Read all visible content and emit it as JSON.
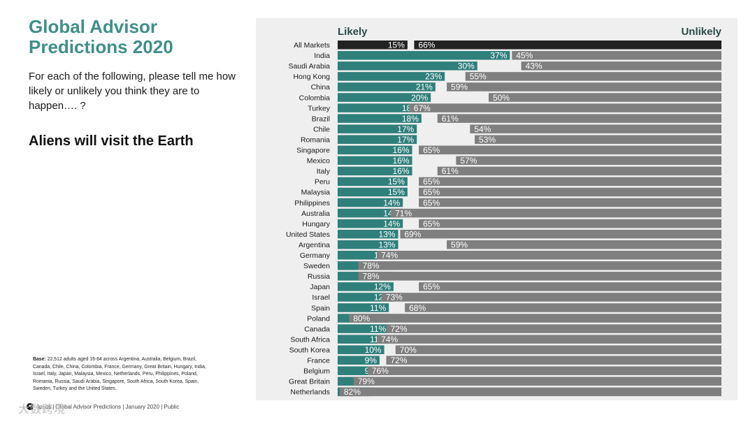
{
  "title": {
    "line1": "Global Advisor",
    "line2": "Predictions 2020"
  },
  "question": "For each of the following, please tell me how likely or unlikely you think they are to happen…. ?",
  "headline": "Aliens will visit the Earth",
  "base_label": "Base:",
  "base_text": "22,512 adults aged 16-64 across Argentina, Australia, Belgium, Brazil, Canada, Chile, China, Colombia, France, Germany, Great Britain, Hungary, India, Israel, Italy, Japan, Malaysia, Mexico, Netherlands, Peru, Philippines, Poland, Romania, Russia, Saudi Arabia, Singapore, South Africa, South Korea, Spain, Sweden, Turkey and the United States.",
  "footer": "Ipsos | Global Advisor Predictions | January 2020 | Public",
  "watermark": "大数跨境",
  "colors": {
    "title": "#3f8f8b",
    "likely": "#2f7f7b",
    "unlikely": "#7f7f7f",
    "all_markets": "#222222",
    "panel": "#efefef"
  },
  "chart_data": {
    "type": "bar",
    "title": "Aliens will visit the Earth",
    "legend": {
      "likely": "Likely",
      "unlikely": "Unlikely"
    },
    "categories": [
      "All Markets",
      "India",
      "Saudi Arabia",
      "Hong Kong",
      "China",
      "Colombia",
      "Turkey",
      "Brazil",
      "Chile",
      "Romania",
      "Singapore",
      "Mexico",
      "Italy",
      "Peru",
      "Malaysia",
      "Philippines",
      "Australia",
      "Hungary",
      "United States",
      "Argentina",
      "Germany",
      "Sweden",
      "Russia",
      "Japan",
      "Israel",
      "Spain",
      "Poland",
      "Canada",
      "South Africa",
      "South Korea",
      "France",
      "Belgium",
      "Great Britain",
      "Netherlands"
    ],
    "series": [
      {
        "name": "Likely",
        "values": [
          15,
          37,
          30,
          23,
          21,
          20,
          18,
          18,
          17,
          17,
          16,
          16,
          16,
          15,
          15,
          14,
          14,
          14,
          13,
          13,
          12,
          12,
          12,
          12,
          12,
          11,
          11,
          11,
          11,
          10,
          9,
          9,
          8,
          7
        ]
      },
      {
        "name": "Unlikely",
        "values": [
          66,
          45,
          43,
          55,
          59,
          50,
          67,
          61,
          54,
          53,
          65,
          57,
          61,
          65,
          65,
          65,
          71,
          65,
          69,
          59,
          74,
          78,
          78,
          65,
          73,
          68,
          80,
          72,
          74,
          70,
          72,
          76,
          79,
          82
        ]
      }
    ],
    "unit": "%",
    "xlim": [
      0,
      100
    ]
  }
}
